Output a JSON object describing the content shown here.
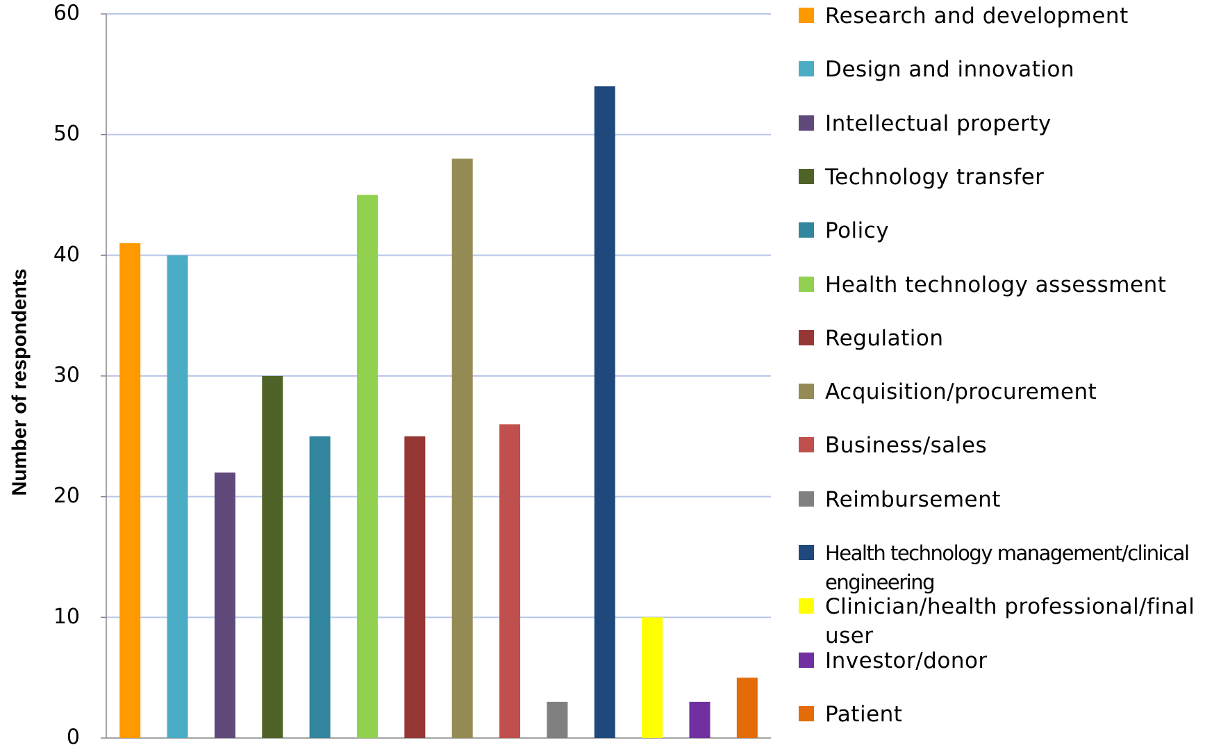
{
  "chart_data": {
    "type": "bar",
    "y_label": "Number of respondents",
    "categories": [
      "Research and development",
      "Design and innovation",
      "Intellectual property",
      "Technology transfer",
      "Policy",
      "Health technology assessment",
      "Regulation",
      "Acquisition/procurement",
      "Business/sales",
      "Reimbursement",
      "Health technology management/clinical engineering",
      "Clinician/health professional/final user",
      "Investor/donor",
      "Patient"
    ],
    "values": [
      41,
      40,
      22,
      30,
      25,
      45,
      25,
      48,
      26,
      3,
      54,
      10,
      3,
      5
    ],
    "colors": [
      "#ff9900",
      "#4bacc6",
      "#604a7b",
      "#4f6228",
      "#31859c",
      "#92d050",
      "#953735",
      "#948a54",
      "#c0504d",
      "#808080",
      "#1f497d",
      "#ffff00",
      "#7030a0",
      "#e36c09"
    ],
    "ylim": [
      0,
      60
    ],
    "yticks": [
      0,
      10,
      20,
      30,
      40,
      50,
      60
    ],
    "grid": true,
    "legend": "right"
  }
}
